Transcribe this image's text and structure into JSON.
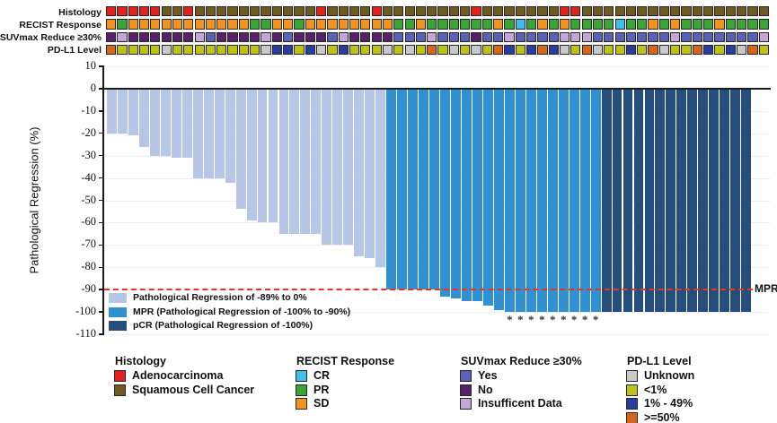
{
  "palette": {
    "adeno": "#E3201C",
    "squam": "#6F5A21",
    "sd": "#F0941F",
    "pr": "#3AA534",
    "cr": "#41BEEB",
    "yes": "#5A62B8",
    "no": "#572169",
    "insuf": "#C4A6DB",
    "unknown": "#C9C9C9",
    "lt1": "#BDC218",
    "p1_49": "#2A3C9F",
    "ge50": "#D4661E",
    "bar_light": "#B5C6E6",
    "bar_mpr": "#3190D2",
    "bar_pcr": "#254E7D",
    "ref_line": "#EA3323",
    "axis": "#1A1A1A",
    "grid": "#EFEFEF"
  },
  "tracks": [
    {
      "label": "Histology",
      "values": [
        "adeno",
        "adeno",
        "adeno",
        "adeno",
        "adeno",
        "squam",
        "squam",
        "adeno",
        "squam",
        "squam",
        "squam",
        "squam",
        "squam",
        "squam",
        "squam",
        "squam",
        "squam",
        "squam",
        "squam",
        "adeno",
        "squam",
        "squam",
        "squam",
        "squam",
        "adeno",
        "squam",
        "squam",
        "squam",
        "squam",
        "squam",
        "squam",
        "squam",
        "squam",
        "adeno",
        "squam",
        "squam",
        "squam",
        "squam",
        "squam",
        "squam",
        "squam",
        "adeno",
        "adeno",
        "squam",
        "squam",
        "squam",
        "squam",
        "squam",
        "squam",
        "squam",
        "squam",
        "squam",
        "squam",
        "squam",
        "squam",
        "squam",
        "squam",
        "squam",
        "squam",
        "squam"
      ]
    },
    {
      "label": "RECIST Response",
      "values": [
        "sd",
        "pr",
        "sd",
        "sd",
        "sd",
        "sd",
        "sd",
        "sd",
        "sd",
        "sd",
        "sd",
        "sd",
        "sd",
        "pr",
        "pr",
        "sd",
        "sd",
        "pr",
        "sd",
        "sd",
        "sd",
        "sd",
        "sd",
        "sd",
        "sd",
        "sd",
        "pr",
        "pr",
        "sd",
        "pr",
        "pr",
        "pr",
        "pr",
        "pr",
        "pr",
        "sd",
        "pr",
        "cr",
        "pr",
        "sd",
        "pr",
        "sd",
        "pr",
        "pr",
        "pr",
        "pr",
        "cr",
        "pr",
        "pr",
        "sd",
        "pr",
        "sd",
        "pr",
        "pr",
        "pr",
        "sd",
        "pr",
        "pr",
        "pr",
        "pr"
      ]
    },
    {
      "label": "SUVmax Reduce ≥30%",
      "values": [
        "no",
        "insuf",
        "no",
        "no",
        "no",
        "no",
        "no",
        "no",
        "insuf",
        "yes",
        "no",
        "no",
        "no",
        "no",
        "insuf",
        "no",
        "yes",
        "no",
        "no",
        "no",
        "yes",
        "insuf",
        "no",
        "no",
        "no",
        "no",
        "yes",
        "yes",
        "yes",
        "insuf",
        "yes",
        "yes",
        "yes",
        "no",
        "yes",
        "yes",
        "insuf",
        "yes",
        "yes",
        "yes",
        "yes",
        "insuf",
        "insuf",
        "insuf",
        "yes",
        "yes",
        "yes",
        "yes",
        "yes",
        "yes",
        "yes",
        "insuf",
        "yes",
        "yes",
        "yes",
        "yes",
        "yes",
        "yes",
        "yes",
        "insuf"
      ]
    },
    {
      "label": "PD-L1 Level",
      "values": [
        "ge50",
        "lt1",
        "lt1",
        "lt1",
        "lt1",
        "unknown",
        "lt1",
        "lt1",
        "lt1",
        "lt1",
        "lt1",
        "lt1",
        "lt1",
        "lt1",
        "unknown",
        "p1_49",
        "p1_49",
        "lt1",
        "p1_49",
        "unknown",
        "lt1",
        "p1_49",
        "lt1",
        "lt1",
        "lt1",
        "unknown",
        "lt1",
        "unknown",
        "lt1",
        "ge50",
        "lt1",
        "unknown",
        "lt1",
        "unknown",
        "lt1",
        "ge50",
        "p1_49",
        "lt1",
        "p1_49",
        "ge50",
        "p1_49",
        "unknown",
        "lt1",
        "ge50",
        "unknown",
        "lt1",
        "lt1",
        "p1_49",
        "lt1",
        "ge50",
        "unknown",
        "lt1",
        "lt1",
        "ge50",
        "p1_49",
        "lt1",
        "p1_49",
        "unknown",
        "ge50",
        "lt1"
      ]
    }
  ],
  "chart_data": {
    "type": "bar",
    "title": "",
    "xlabel": "",
    "ylabel": "Pathological Regression (%)",
    "ylim": [
      -110,
      10
    ],
    "yticks": [
      10,
      0,
      -10,
      -20,
      -30,
      -40,
      -50,
      -60,
      -70,
      -80,
      -90,
      -100,
      -110
    ],
    "grid": "horizontal-light",
    "values": [
      -20,
      -20,
      -21,
      -26,
      -30,
      -30,
      -31,
      -31,
      -40,
      -40,
      -40,
      -42,
      -54,
      -59,
      -60,
      -60,
      -65,
      -65,
      -65,
      -65,
      -70,
      -70,
      -70,
      -75,
      -76,
      -80,
      -90,
      -90,
      -90,
      -90,
      -90,
      -93,
      -94,
      -95,
      -95,
      -97,
      -99,
      -100,
      -100,
      -100,
      -100,
      -100,
      -100,
      -100,
      -100,
      -100,
      -100,
      -100,
      -100,
      -100,
      -100,
      -100,
      -100,
      -100,
      -100,
      -100,
      -100,
      -100,
      -100,
      -100
    ],
    "groups": [
      "light",
      "light",
      "light",
      "light",
      "light",
      "light",
      "light",
      "light",
      "light",
      "light",
      "light",
      "light",
      "light",
      "light",
      "light",
      "light",
      "light",
      "light",
      "light",
      "light",
      "light",
      "light",
      "light",
      "light",
      "light",
      "light",
      "mpr",
      "mpr",
      "mpr",
      "mpr",
      "mpr",
      "mpr",
      "mpr",
      "mpr",
      "mpr",
      "mpr",
      "mpr",
      "mpr",
      "mpr",
      "mpr",
      "mpr",
      "mpr",
      "mpr",
      "mpr",
      "mpr",
      "mpr",
      "pcr",
      "pcr",
      "pcr",
      "pcr",
      "pcr",
      "pcr",
      "pcr",
      "pcr",
      "pcr",
      "pcr",
      "pcr",
      "pcr",
      "pcr",
      "pcr"
    ],
    "asterisk_bars": [
      37,
      38,
      39,
      40,
      41,
      42,
      43,
      44,
      45
    ],
    "asterisk_symbol": "*",
    "reference_line": {
      "y": -90,
      "label": "MPR"
    }
  },
  "plot_legend": [
    {
      "color": "bar_light",
      "label": "Pathological Regression of -89% to 0%"
    },
    {
      "color": "bar_mpr",
      "label": "MPR (Pathological Regression of -100% to -90%)"
    },
    {
      "color": "bar_pcr",
      "label": "pCR (Pathological Regression of -100%)"
    }
  ],
  "bottom_legend": [
    {
      "title": "Histology",
      "items": [
        {
          "color": "adeno",
          "label": "Adenocarcinoma"
        },
        {
          "color": "squam",
          "label": "Squamous Cell Cancer"
        }
      ]
    },
    {
      "title": "RECIST Response",
      "items": [
        {
          "color": "cr",
          "label": "CR"
        },
        {
          "color": "pr",
          "label": "PR"
        },
        {
          "color": "sd",
          "label": "SD"
        }
      ]
    },
    {
      "title": "SUVmax Reduce ≥30%",
      "items": [
        {
          "color": "yes",
          "label": "Yes"
        },
        {
          "color": "no",
          "label": "No"
        },
        {
          "color": "insuf",
          "label": "Insufficent Data"
        }
      ]
    },
    {
      "title": "PD-L1 Level",
      "items": [
        {
          "color": "unknown",
          "label": "Unknown"
        },
        {
          "color": "lt1",
          "label": "<1%"
        },
        {
          "color": "p1_49",
          "label": "1% - 49%"
        },
        {
          "color": "ge50",
          "label": ">=50%"
        }
      ]
    }
  ]
}
